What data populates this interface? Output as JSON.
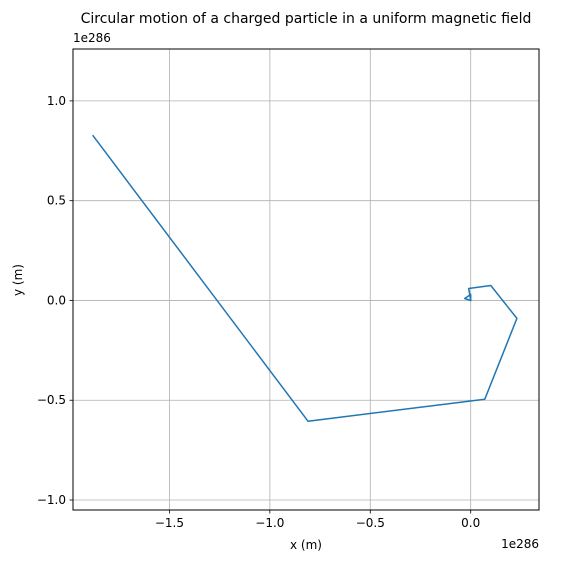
{
  "chart_data": {
    "type": "line",
    "title": "Circular motion of a charged particle in a uniform magnetic field",
    "xlabel": "x (m)",
    "ylabel": "y (m)",
    "x_offset_text": "1e286",
    "y_offset_text": "1e286",
    "xlim": [
      -1.98,
      0.34
    ],
    "ylim": [
      -1.05,
      1.26
    ],
    "xticks": [
      {
        "value": -1.5,
        "label": "−1.5"
      },
      {
        "value": -1.0,
        "label": "−1.0"
      },
      {
        "value": -0.5,
        "label": "−0.5"
      },
      {
        "value": 0.0,
        "label": "0.0"
      }
    ],
    "yticks": [
      {
        "value": 1.0,
        "label": "1.0"
      },
      {
        "value": 0.5,
        "label": "0.5"
      },
      {
        "value": 0.0,
        "label": "0.0"
      },
      {
        "value": -0.5,
        "label": "−0.5"
      },
      {
        "value": -1.0,
        "label": "−1.0"
      }
    ],
    "grid": true,
    "series": [
      {
        "color": "#1f77b4",
        "x": [
          0.0,
          -0.03,
          -0.015,
          0.0,
          0.0,
          -0.01,
          0.1,
          0.23,
          0.07,
          -0.81,
          -1.88
        ],
        "y": [
          0.0,
          0.01,
          0.02,
          0.03,
          0.0,
          0.06,
          0.075,
          -0.09,
          -0.495,
          -0.605,
          0.825
        ]
      }
    ]
  }
}
